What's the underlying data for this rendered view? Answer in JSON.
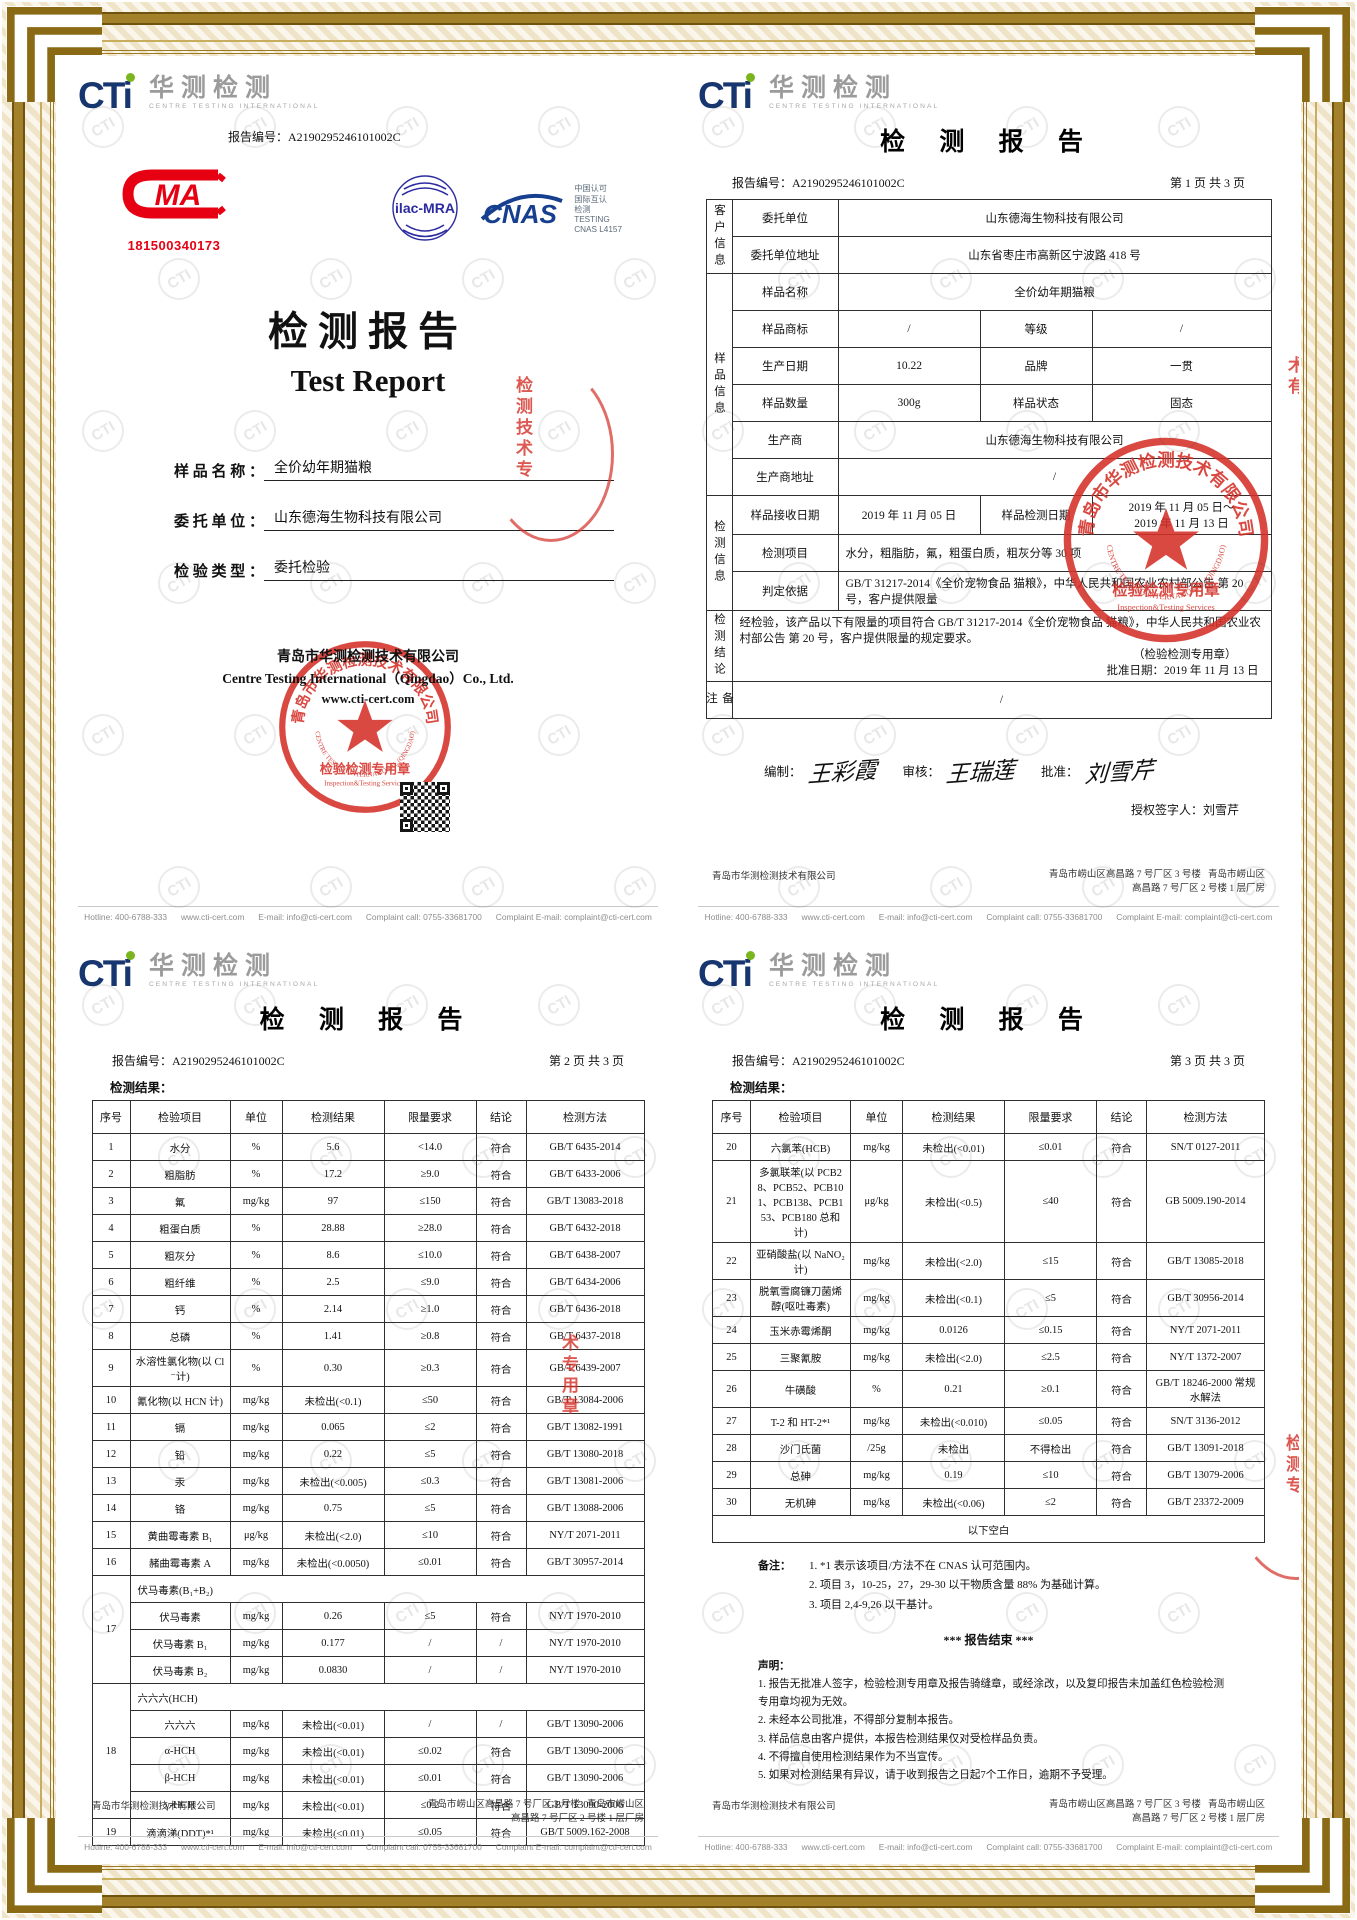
{
  "watermark": "CTI",
  "logo": {
    "cti": "CTi",
    "cn": "华测检测",
    "en": "CENTRE TESTING INTERNATIONAL"
  },
  "footer": {
    "hotline": "Hotline: 400-6788-333      www.cti-cert.com      E-mail: info@cti-cert.com      Complaint call: 0755-33681700      Complaint E-mail: complaint@cti-cert.com",
    "company": "青岛市华测检测技术有限公司",
    "address_line1": "青岛市崂山区高昌路 7 号厂区 3 号楼   青岛市崂山区",
    "address_line2": "高昌路 7 号厂区 2 号楼 1 层厂房"
  },
  "stamp": {
    "ring_top": "青岛市华测检测技术有限公司",
    "ring_bottom": "CENTRE TESTING INTERNATIONAL (QINGDAO)",
    "line1": "检验检测专用章",
    "line2": "Inspection&Testing Services"
  },
  "fragments": {
    "cover": "检测技术专",
    "p1": "术有",
    "p2": "术专用章",
    "p3": "检测专"
  },
  "cover": {
    "report_no": "报告编号：A2190295246101002C",
    "cma_label": "MA",
    "cma_number": "181500340173",
    "ilac": "ilac-MRA",
    "cnas": "CNAS",
    "cnas_side": "中国认可\n国际互认\n检测\nTESTING\nCNAS L4157",
    "title_cn": "检测报告",
    "title_en": "Test Report",
    "fields": [
      {
        "label": "样 品 名 称 ：",
        "value": "全价幼年期猫粮"
      },
      {
        "label": "委 托 单 位 ：",
        "value": "山东德海生物科技有限公司"
      },
      {
        "label": "检 验 类 型 ：",
        "value": "委托检验"
      }
    ],
    "company_cn": "青岛市华测检测技术有限公司",
    "company_en": "Centre Testing International（Qingdao）Co., Ltd.",
    "website": "www.cti-cert.com"
  },
  "p1": {
    "title": "检 测 报 告",
    "report_no": "报告编号：A2190295246101002C",
    "page_info": "第 1 页 共 3 页",
    "info": {
      "widths": [
        26,
        106,
        142,
        112,
        179
      ],
      "rows": [
        [
          {
            "t": "客户信息",
            "cls": "vert",
            "rs": 2
          },
          {
            "t": "委托单位"
          },
          {
            "t": "山东德海生物科技有限公司",
            "cs": 3
          }
        ],
        [
          {
            "t": "委托单位地址"
          },
          {
            "t": "山东省枣庄市高新区宁波路 418 号",
            "cs": 3
          }
        ],
        [
          {
            "t": "样品信息",
            "cls": "vert",
            "rs": 6
          },
          {
            "t": "样品名称"
          },
          {
            "t": "全价幼年期猫粮",
            "cs": 3
          }
        ],
        [
          {
            "t": "样品商标"
          },
          {
            "t": "/"
          },
          {
            "t": "等级"
          },
          {
            "t": "/"
          }
        ],
        [
          {
            "t": "生产日期"
          },
          {
            "t": "10.22"
          },
          {
            "t": "品牌"
          },
          {
            "t": "一贯"
          }
        ],
        [
          {
            "t": "样品数量"
          },
          {
            "t": "300g"
          },
          {
            "t": "样品状态"
          },
          {
            "t": "固态"
          }
        ],
        [
          {
            "t": "生产商"
          },
          {
            "t": "山东德海生物科技有限公司",
            "cs": 3
          }
        ],
        [
          {
            "t": "生产商地址"
          },
          {
            "t": "/",
            "cs": 3
          }
        ],
        [
          {
            "t": "检测信息",
            "cls": "vert",
            "rs": 3
          },
          {
            "t": "样品接收日期"
          },
          {
            "t": "2019 年 11 月 05 日"
          },
          {
            "t": "样品检测日期"
          },
          {
            "t": "2019 年 11 月 05 日～\n2019 年 11 月 13 日",
            "cls": "pre"
          }
        ],
        [
          {
            "t": "检测项目"
          },
          {
            "t": "水分，粗脂肪，氟，粗蛋白质，粗灰分等 30 项",
            "cs": 3,
            "cls": "left"
          }
        ],
        [
          {
            "t": "判定依据"
          },
          {
            "t": "GB/T 31217-2014《全价宠物食品 猫粮》，中华人民共和国农业农村部公告 第 20 号，客户提供限量",
            "cs": 3,
            "cls": "left"
          }
        ],
        [
          {
            "t": "检测结论",
            "cls": "vert"
          },
          {
            "cs": 4,
            "cls": "left",
            "lines": [
              {
                "t": "经检验，该产品以下有限量的项目符合 GB/T 31217-2014《全价宠物食品 猫粮》，中华人民共和国农业农村部公告 第 20 号，客户提供限量的规定要求。"
              },
              {
                "t": "（检验检测专用章）",
                "cls": "alr"
              },
              {
                "t": "批准日期：2019 年 11 月 13 日",
                "cls": "alr2"
              }
            ]
          }
        ],
        [
          {
            "t": "备注",
            "cls": "vert"
          },
          {
            "t": "/",
            "cs": 4
          }
        ]
      ]
    },
    "sign": {
      "bz": "编制：",
      "bz_name": "王彩霞",
      "sh": "审核：",
      "sh_name": "王瑞莲",
      "pz": "批准：",
      "pz_name": "刘雪芹",
      "auth": "授权签字人：刘雪芹"
    }
  },
  "p2": {
    "title": "检 测 报 告",
    "report_no": "报告编号：A2190295246101002C",
    "page_info": "第 2 页 共 3 页",
    "results_label": "检测结果：",
    "table": {
      "widths": [
        38,
        100,
        52,
        102,
        92,
        50,
        118
      ],
      "headers": [
        "序号",
        "检验项目",
        "单位",
        "检测结果",
        "限量要求",
        "结论",
        "检测方法"
      ],
      "rows": [
        [
          "1",
          "水分",
          "%",
          "5.6",
          "<14.0",
          "符合",
          "GB/T 6435-2014"
        ],
        [
          "2",
          "粗脂肪",
          "%",
          "17.2",
          "≥9.0",
          "符合",
          "GB/T 6433-2006"
        ],
        [
          "3",
          "氟",
          "mg/kg",
          "97",
          "≤150",
          "符合",
          "GB/T 13083-2018"
        ],
        [
          "4",
          "粗蛋白质",
          "%",
          "28.88",
          "≥28.0",
          "符合",
          "GB/T 6432-2018"
        ],
        [
          "5",
          "粗灰分",
          "%",
          "8.6",
          "≤10.0",
          "符合",
          "GB/T 6438-2007"
        ],
        [
          "6",
          "粗纤维",
          "%",
          "2.5",
          "≤9.0",
          "符合",
          "GB/T 6434-2006"
        ],
        [
          "7",
          "钙",
          "%",
          "2.14",
          "≥1.0",
          "符合",
          "GB/T 6436-2018"
        ],
        [
          "8",
          "总磷",
          "%",
          "1.41",
          "≥0.8",
          "符合",
          "GB/T 6437-2018"
        ],
        [
          "9",
          "水溶性氯化物(以 Cl⁻计)",
          "%",
          "0.30",
          "≥0.3",
          "符合",
          "GB/T 6439-2007"
        ],
        [
          "10",
          "氰化物(以 HCN 计)",
          "mg/kg",
          "未检出(<0.1)",
          "≤50",
          "符合",
          "GB/T 13084-2006"
        ],
        [
          "11",
          "镉",
          "mg/kg",
          "0.065",
          "≤2",
          "符合",
          "GB/T 13082-1991"
        ],
        [
          "12",
          "铅",
          "mg/kg",
          "0.22",
          "≤5",
          "符合",
          "GB/T 13080-2018"
        ],
        [
          "13",
          "汞",
          "mg/kg",
          "未检出(<0.005)",
          "≤0.3",
          "符合",
          "GB/T 13081-2006"
        ],
        [
          "14",
          "铬",
          "mg/kg",
          "0.75",
          "≤5",
          "符合",
          "GB/T 13088-2006"
        ],
        [
          "15",
          "黄曲霉毒素 B₁",
          "μg/kg",
          "未检出(<2.0)",
          "≤10",
          "符合",
          "NY/T 2071-2011"
        ],
        [
          "16",
          "赭曲霉毒素 A",
          "mg/kg",
          "未检出(<0.0050)",
          "≤0.01",
          "符合",
          "GB/T 30957-2014"
        ],
        [
          {
            "t": "17",
            "rs": 4
          },
          {
            "t": "伏马毒素(B₁+B₂)",
            "cs": 6,
            "cls": "left"
          }
        ],
        [
          "伏马毒素",
          "mg/kg",
          "0.26",
          "≤5",
          "符合",
          "NY/T 1970-2010"
        ],
        [
          "伏马毒素 B₁",
          "mg/kg",
          "0.177",
          "/",
          "/",
          "NY/T 1970-2010"
        ],
        [
          "伏马毒素 B₂",
          "mg/kg",
          "0.0830",
          "/",
          "/",
          "NY/T 1970-2010"
        ],
        [
          {
            "t": "18",
            "rs": 5
          },
          {
            "t": "六六六(HCH)",
            "cs": 6,
            "cls": "left"
          }
        ],
        [
          "六六六",
          "mg/kg",
          "未检出(<0.01)",
          "/",
          "/",
          "GB/T 13090-2006"
        ],
        [
          "α-HCH",
          "mg/kg",
          "未检出(<0.01)",
          "≤0.02",
          "符合",
          "GB/T 13090-2006"
        ],
        [
          "β-HCH",
          "mg/kg",
          "未检出(<0.01)",
          "≤0.01",
          "符合",
          "GB/T 13090-2006"
        ],
        [
          "γ-HCH",
          "mg/kg",
          "未检出(<0.01)",
          "≤0.2",
          "符合",
          "GB/T 13090-2006"
        ],
        [
          "19",
          "滴滴涕(DDT)*¹",
          "mg/kg",
          "未检出(<0.01)",
          "≤0.05",
          "符合",
          "GB/T 5009.162-2008"
        ]
      ]
    }
  },
  "p3": {
    "title": "检 测 报 告",
    "report_no": "报告编号：A2190295246101002C",
    "page_info": "第 3 页 共 3 页",
    "results_label": "检测结果：",
    "table": {
      "widths": [
        38,
        100,
        52,
        102,
        92,
        50,
        118
      ],
      "headers": [
        "序号",
        "检验项目",
        "单位",
        "检测结果",
        "限量要求",
        "结论",
        "检测方法"
      ],
      "rows": [
        [
          "20",
          "六氯苯(HCB)",
          "mg/kg",
          "未检出(<0.01)",
          "≤0.01",
          "符合",
          "SN/T 0127-2011"
        ],
        [
          "21",
          "多氯联苯(以 PCB28、PCB52、PCB101、PCB138、PCB153、PCB180 总和计)",
          "μg/kg",
          "未检出(<0.5)",
          "≤40",
          "符合",
          "GB 5009.190-2014"
        ],
        [
          "22",
          "亚硝酸盐(以 NaNO₂计)",
          "mg/kg",
          "未检出(<2.0)",
          "≤15",
          "符合",
          "GB/T 13085-2018"
        ],
        [
          "23",
          "脱氧雪腐镰刀菌烯醇(呕吐毒素)",
          "mg/kg",
          "未检出(<0.1)",
          "≤5",
          "符合",
          "GB/T 30956-2014"
        ],
        [
          "24",
          "玉米赤霉烯酮",
          "mg/kg",
          "0.0126",
          "≤0.15",
          "符合",
          "NY/T 2071-2011"
        ],
        [
          "25",
          "三聚氰胺",
          "mg/kg",
          "未检出(<2.0)",
          "≤2.5",
          "符合",
          "NY/T 1372-2007"
        ],
        [
          "26",
          "牛磺酸",
          "%",
          "0.21",
          "≥0.1",
          "符合",
          "GB/T 18246-2000 常规水解法"
        ],
        [
          "27",
          "T-2 和 HT-2*¹",
          "mg/kg",
          "未检出(<0.010)",
          "≤0.05",
          "符合",
          "SN/T 3136-2012"
        ],
        [
          "28",
          "沙门氏菌",
          "/25g",
          "未检出",
          "不得检出",
          "符合",
          "GB/T 13091-2018"
        ],
        [
          "29",
          "总砷",
          "mg/kg",
          "0.19",
          "≤10",
          "符合",
          "GB/T 13079-2006"
        ],
        [
          "30",
          "无机砷",
          "mg/kg",
          "未检出(<0.06)",
          "≤2",
          "符合",
          "GB/T 23372-2009"
        ],
        [
          {
            "t": "以下空白",
            "cs": 7
          }
        ]
      ]
    },
    "notes": {
      "label": "备注：",
      "items": [
        "1. *1 表示该项目/方法不在 CNAS 认可范围内。",
        "2. 项目 3，10-25，27，29-30 以干物质含量 88% 为基础计算。",
        "3. 项目 2,4-9,26 以干基计。"
      ]
    },
    "end_line": "*** 报告结束 ***",
    "statement": {
      "label": "声明：",
      "items": [
        "1. 报告无批准人签字，检验检测专用章及报告骑缝章，或经涂改，以及复印报告未加盖红色检验检测专用章均视为无效。",
        "2. 未经本公司批准，不得部分复制本报告。",
        "3. 样品信息由客户提供，本报告检测结果仅对受检样品负责。",
        "4. 不得擅自使用检测结果作为不当宣传。",
        "5. 如果对检测结果有异议，请于收到报告之日起7个工作日，逾期不予受理。"
      ]
    }
  }
}
